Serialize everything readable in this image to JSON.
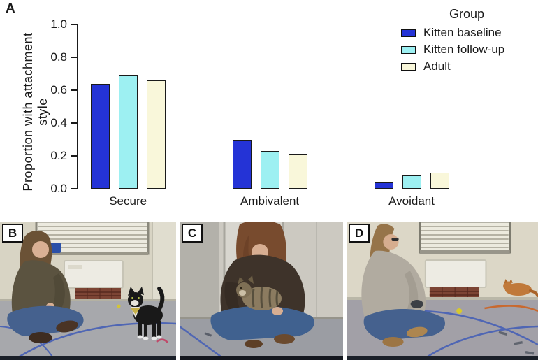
{
  "figure": {
    "panels": {
      "a": "A",
      "b": "B",
      "c": "C",
      "d": "D"
    }
  },
  "chart_data": {
    "type": "bar",
    "title": "",
    "ylabel": "Proportion with attachment style",
    "xlabel": "",
    "categories": [
      "Secure",
      "Ambivalent",
      "Avoidant"
    ],
    "series": [
      {
        "name": "Kitten baseline",
        "color": "#2433d6",
        "values": [
          0.64,
          0.3,
          0.04
        ]
      },
      {
        "name": "Kitten follow-up",
        "color": "#9df0f2",
        "values": [
          0.69,
          0.23,
          0.08
        ]
      },
      {
        "name": "Adult",
        "color": "#f9f7da",
        "values": [
          0.66,
          0.21,
          0.1
        ]
      }
    ],
    "ylim": [
      0,
      1.0
    ],
    "yticks": [
      0.0,
      0.2,
      0.4,
      0.6,
      0.8,
      1.0
    ],
    "legend": {
      "title": "Group",
      "position": "top-right"
    },
    "grid": false,
    "axis_color": "#1a1a1a",
    "bar_border_color": "#1a1a1a"
  },
  "photos": [
    {
      "label": "B",
      "scene": "woman-sitting-cross-legged-with-tuxedo-cat-standing"
    },
    {
      "label": "C",
      "scene": "woman-holding-tabby-cat-in-lap"
    },
    {
      "label": "D",
      "scene": "woman-sitting-cross-legged-orange-cat-in-background"
    }
  ]
}
